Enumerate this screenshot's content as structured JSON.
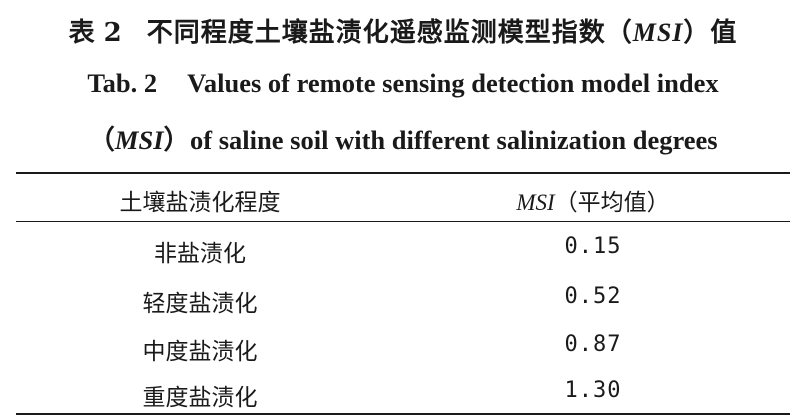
{
  "title": {
    "cn_prefix": "表",
    "cn_number": "2",
    "cn_text": "不同程度土壤盐渍化遥感监测模型指数（",
    "cn_abbr": "MSI",
    "cn_suffix": "）值",
    "en_tab": "Tab. 2",
    "en_line1": "Values of remote sensing detection model index",
    "en_paren_open": "（",
    "en_abbr": "MSI",
    "en_line2_rest": "）of saline soil with different salinization degrees"
  },
  "table": {
    "header": {
      "col1": "土壤盐渍化程度",
      "col2_abbr": "MSI",
      "col2_rest": "（平均值）"
    },
    "rows": [
      {
        "degree": "非盐渍化",
        "msi": "0.15"
      },
      {
        "degree": "轻度盐渍化",
        "msi": "0.52"
      },
      {
        "degree": "中度盐渍化",
        "msi": "0.87"
      },
      {
        "degree": "重度盐渍化",
        "msi": "1.30"
      }
    ]
  }
}
